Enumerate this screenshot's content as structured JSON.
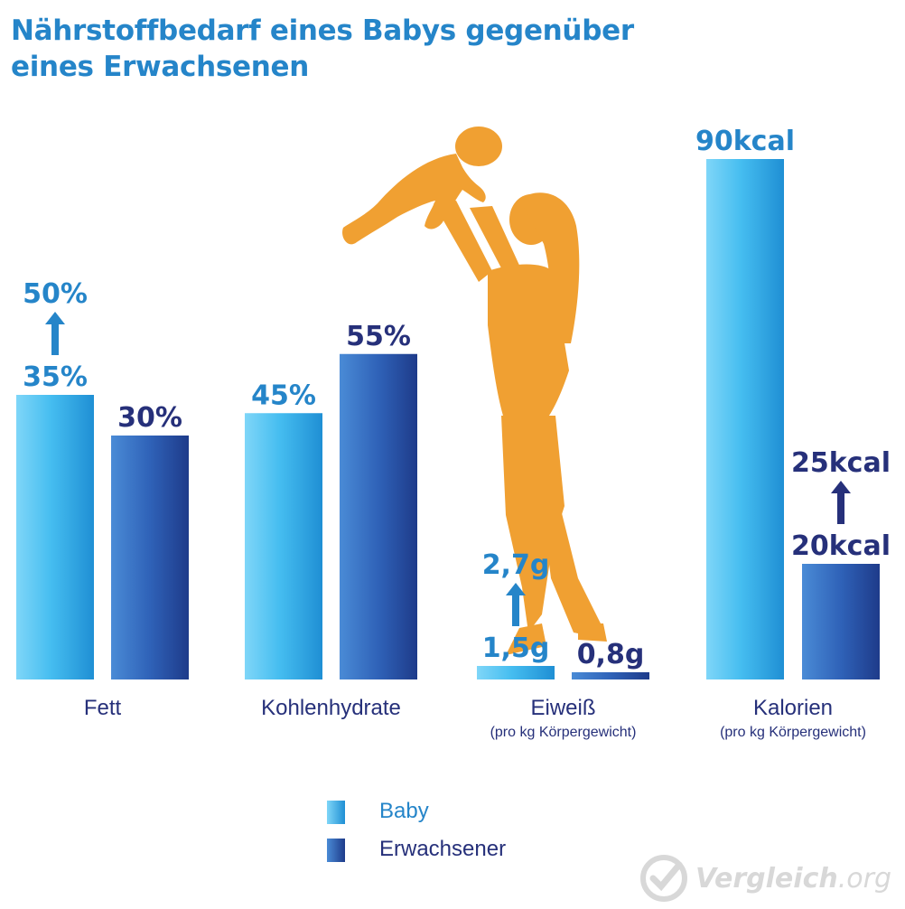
{
  "title_line1": "Nährstoffbedarf eines Babys gegenüber",
  "title_line2": "eines Erwachsenen",
  "chart_data": {
    "type": "bar",
    "title": "Nährstoffbedarf eines Babys gegenüber eines Erwachsenen",
    "categories": [
      "Fett",
      "Kohlenhydrate",
      "Eiweiß",
      "Kalorien"
    ],
    "category_subtitles": [
      "",
      "",
      "(pro kg Körpergewicht)",
      "(pro kg Körpergewicht)"
    ],
    "series": [
      {
        "name": "Baby",
        "values": [
          35,
          45,
          1.5,
          90
        ],
        "labels": [
          "35%",
          "45%",
          "1,5g",
          "90kcal"
        ],
        "color": "#35b6ee"
      },
      {
        "name": "Erwachsener",
        "values": [
          30,
          55,
          0.8,
          20
        ],
        "labels": [
          "30%",
          "55%",
          "0,8g",
          "20kcal"
        ],
        "color": "#2a55a8"
      }
    ],
    "increase_annotations": [
      {
        "category": "Fett",
        "series": "Baby",
        "from": "35%",
        "to": "50%"
      },
      {
        "category": "Eiweiß",
        "series": "Baby",
        "from": "1,5g",
        "to": "2,7g"
      },
      {
        "category": "Kalorien",
        "series": "Erwachsener",
        "from": "20kcal",
        "to": "25kcal"
      }
    ],
    "legend_position": "bottom-center",
    "grid": false
  },
  "legend": [
    {
      "label": "Baby",
      "color": "#35b6ee"
    },
    {
      "label": "Erwachsener",
      "color": "#2a55a8"
    }
  ],
  "colors": {
    "title": "#2585c9",
    "baby_label": "#2585c9",
    "adult_label": "#26307a",
    "silhouette": "#f0a032"
  },
  "watermark": {
    "name": "Vergleich",
    "suffix": ".org"
  },
  "icons": [
    "checkmark-logo-icon",
    "mother-baby-silhouette-icon",
    "up-arrow-icon"
  ]
}
